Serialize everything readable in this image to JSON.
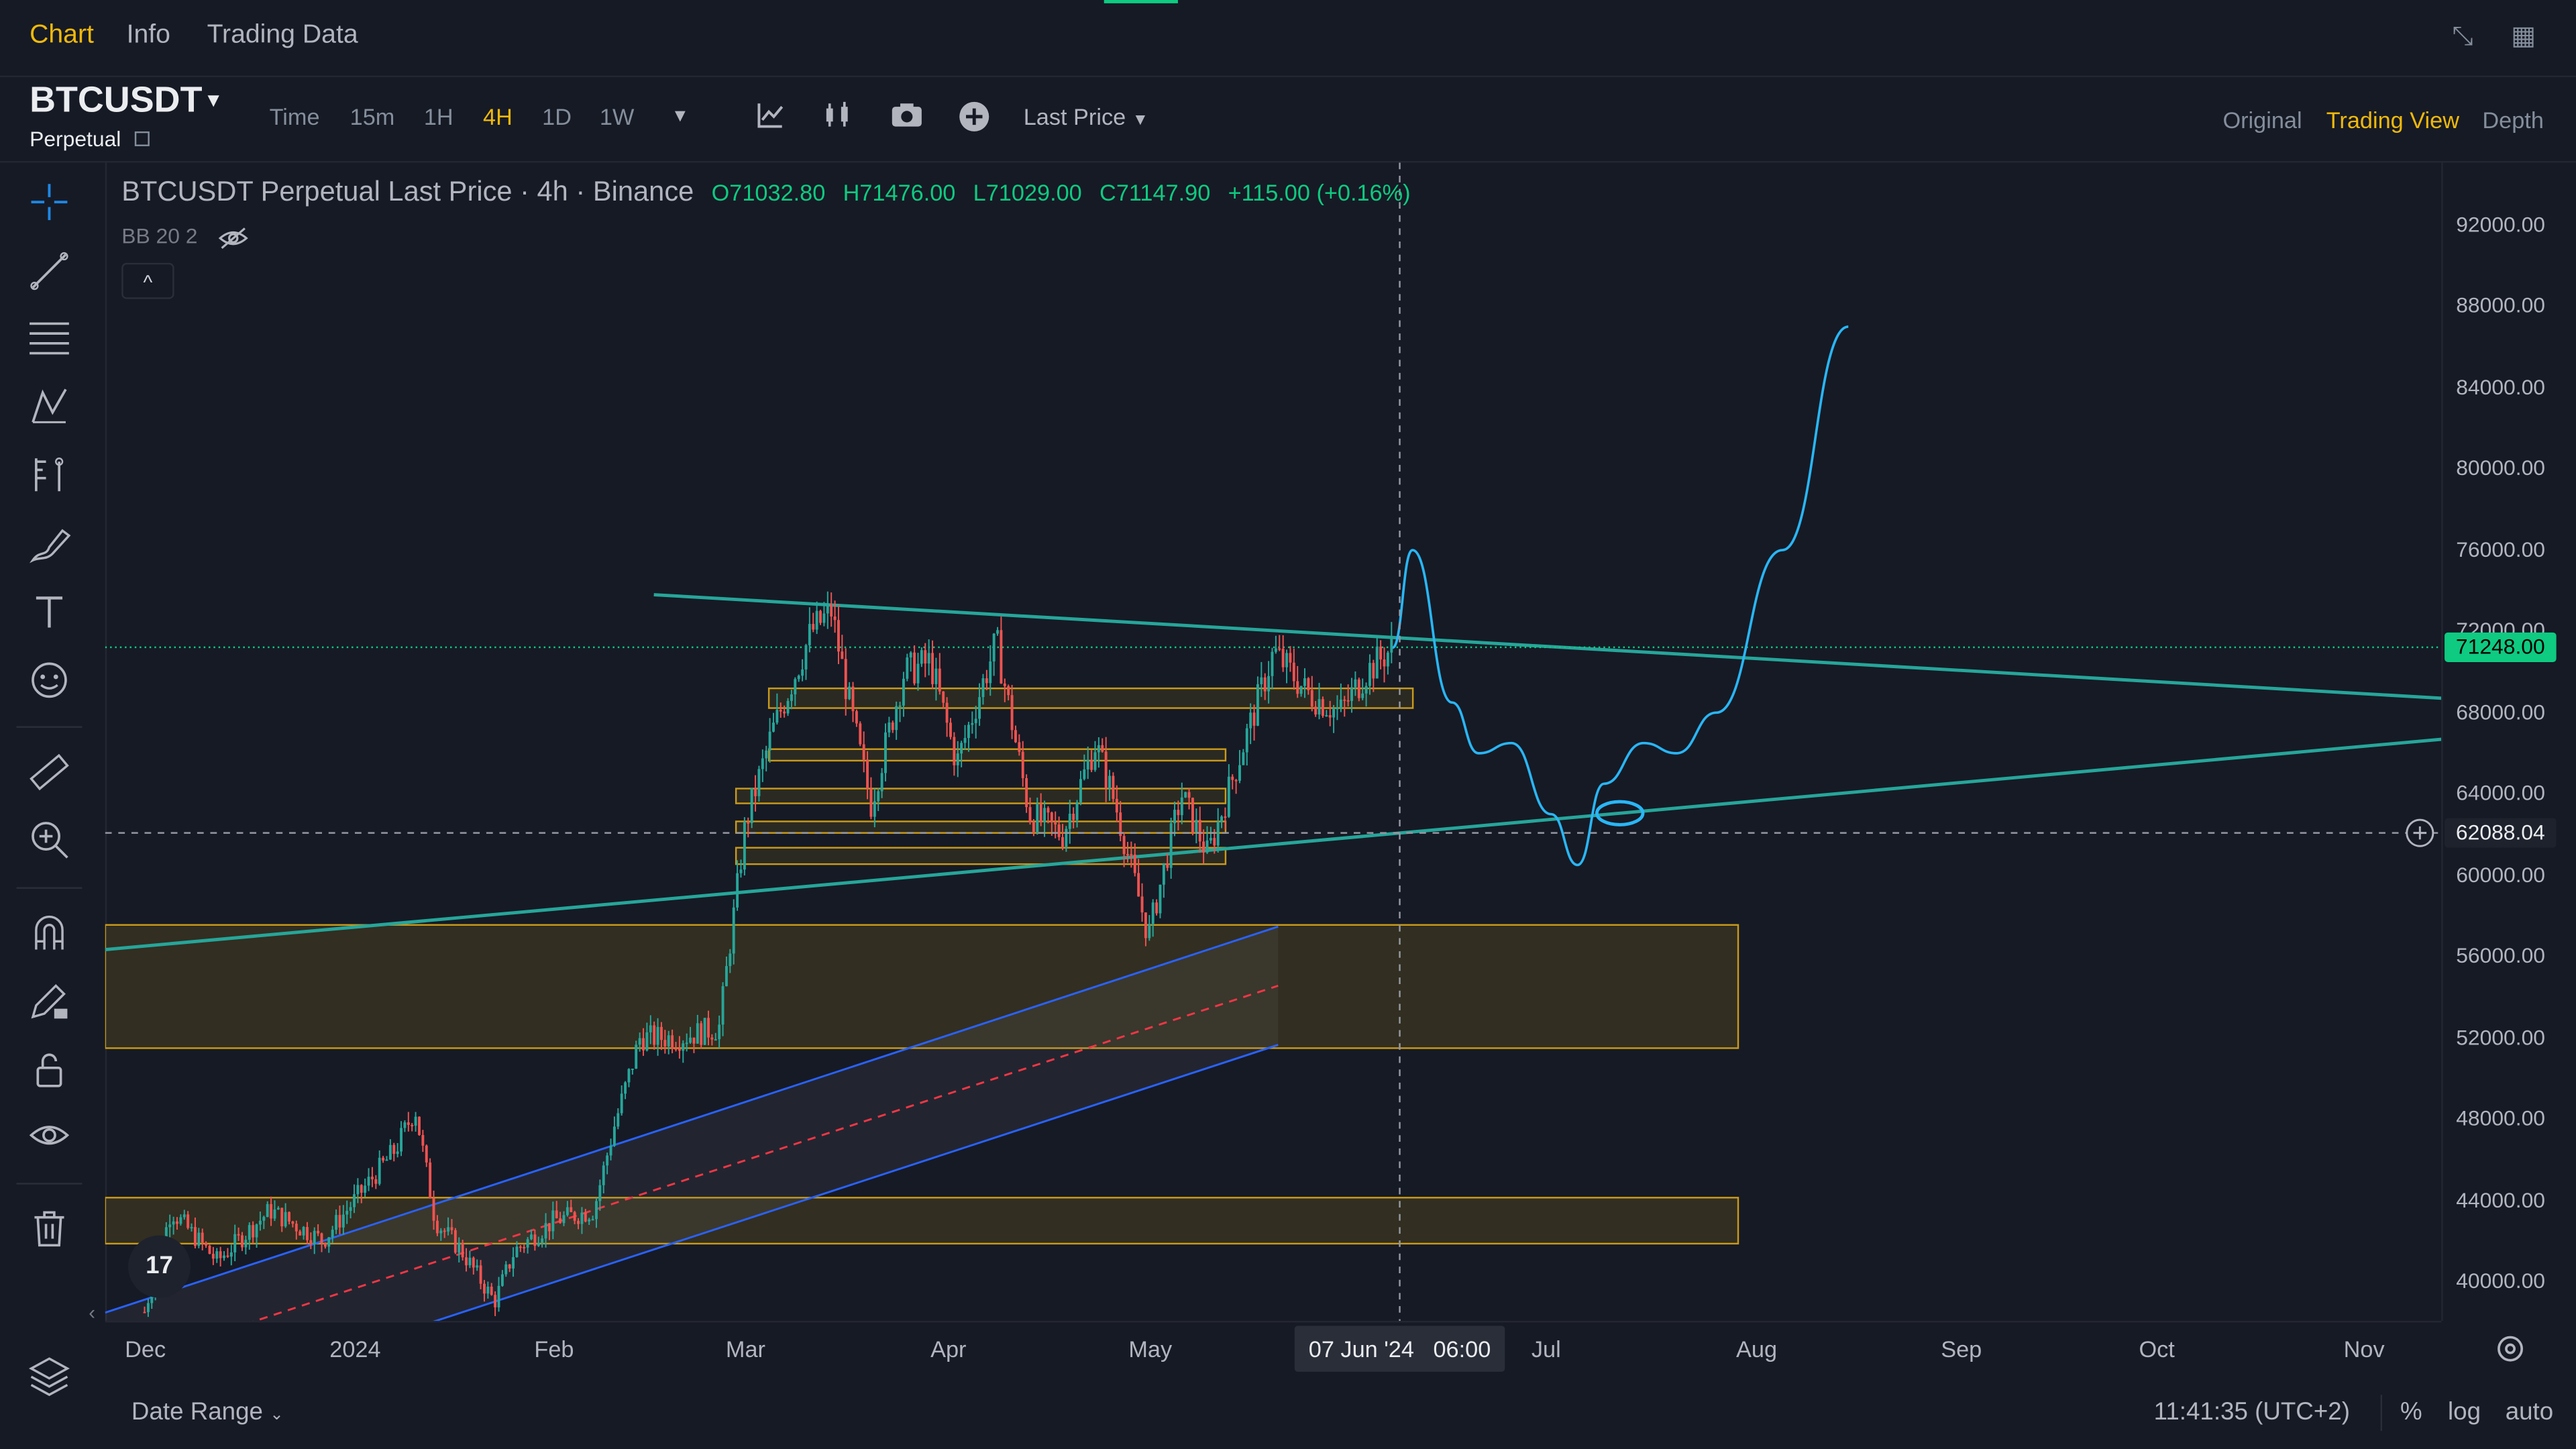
{
  "top_tabs": [
    {
      "label": "Chart",
      "active": true
    },
    {
      "label": "Info",
      "active": false
    },
    {
      "label": "Trading Data",
      "active": false
    }
  ],
  "top_icons": [
    "collapse-icon",
    "grid-icon"
  ],
  "symbol": {
    "name": "BTCUSDT",
    "type": "Perpetual"
  },
  "timeframes": [
    {
      "label": "Time",
      "active": false
    },
    {
      "label": "15m",
      "active": false
    },
    {
      "label": "1H",
      "active": false
    },
    {
      "label": "4H",
      "active": true
    },
    {
      "label": "1D",
      "active": false
    },
    {
      "label": "1W",
      "active": false
    }
  ],
  "toolbar_icons": [
    "chevron-down-icon",
    "indicators-icon",
    "candles-icon",
    "camera-icon",
    "plus-circle-icon"
  ],
  "price_type": "Last Price",
  "view_options": [
    {
      "label": "Original",
      "active": false
    },
    {
      "label": "Trading View",
      "active": true
    },
    {
      "label": "Depth",
      "active": false
    }
  ],
  "left_tools": [
    "crosshair-icon",
    "trendline-icon",
    "fib-icon",
    "pattern-icon",
    "forecast-icon",
    "brush-icon",
    "text-icon",
    "emoji-icon",
    "ruler-icon",
    "zoom-icon",
    "magnet-icon",
    "pencil-lock-icon",
    "lock-icon",
    "eye-icon",
    "trash-icon",
    "layers-icon"
  ],
  "legend": {
    "title": "BTCUSDT Perpetual Last Price · 4h · Binance",
    "o": "O71032.80",
    "h": "H71476.00",
    "l": "L71029.00",
    "c": "C71147.90",
    "change": "+115.00 (+0.16%)",
    "indicator": "BB 20 2",
    "collapse": "^"
  },
  "chart_data": {
    "type": "candlestick",
    "y_ticks": [
      "92000.00",
      "88000.00",
      "84000.00",
      "80000.00",
      "76000.00",
      "72000.00",
      "68000.00",
      "64000.00",
      "60000.00",
      "56000.00",
      "52000.00",
      "48000.00",
      "44000.00",
      "40000.00"
    ],
    "ylim": [
      38000,
      94000
    ],
    "x_ticks": [
      "Dec",
      "2024",
      "Feb",
      "Mar",
      "Apr",
      "May",
      "Jun",
      "Jul",
      "Aug",
      "Sep",
      "Oct",
      "Nov"
    ],
    "current_price": "71248.00",
    "crosshair_price": "62088.04",
    "crosshair_time": "07 Jun '24   06:00",
    "price_path": [
      [
        "2023-12-01",
        38500
      ],
      [
        "2023-12-05",
        43500
      ],
      [
        "2023-12-12",
        41000
      ],
      [
        "2023-12-20",
        43500
      ],
      [
        "2023-12-28",
        42000
      ],
      [
        "2024-01-03",
        44500
      ],
      [
        "2024-01-08",
        46500
      ],
      [
        "2024-01-11",
        48500
      ],
      [
        "2024-01-14",
        43000
      ],
      [
        "2024-01-18",
        41500
      ],
      [
        "2024-01-23",
        39000
      ],
      [
        "2024-01-26",
        41500
      ],
      [
        "2024-02-01",
        43000
      ],
      [
        "2024-02-07",
        43500
      ],
      [
        "2024-02-10",
        47500
      ],
      [
        "2024-02-14",
        52000
      ],
      [
        "2024-02-20",
        52000
      ],
      [
        "2024-02-26",
        52500
      ],
      [
        "2024-02-28",
        57500
      ],
      [
        "2024-03-01",
        62500
      ],
      [
        "2024-03-05",
        67000
      ],
      [
        "2024-03-11",
        72000
      ],
      [
        "2024-03-14",
        73000
      ],
      [
        "2024-03-17",
        68000
      ],
      [
        "2024-03-20",
        63500
      ],
      [
        "2024-03-25",
        70000
      ],
      [
        "2024-03-29",
        70500
      ],
      [
        "2024-04-02",
        65500
      ],
      [
        "2024-04-08",
        71500
      ],
      [
        "2024-04-13",
        63000
      ],
      [
        "2024-04-18",
        62000
      ],
      [
        "2024-04-23",
        66500
      ],
      [
        "2024-04-26",
        63500
      ],
      [
        "2024-05-01",
        57000
      ],
      [
        "2024-05-06",
        64000
      ],
      [
        "2024-05-10",
        61000
      ],
      [
        "2024-05-15",
        66000
      ],
      [
        "2024-05-20",
        71000
      ],
      [
        "2024-05-25",
        69000
      ],
      [
        "2024-05-30",
        68000
      ],
      [
        "2024-06-03",
        70000
      ],
      [
        "2024-06-07",
        71200
      ]
    ],
    "projection_path": [
      [
        "2024-06-07",
        71200
      ],
      [
        "2024-06-10",
        76000
      ],
      [
        "2024-06-16",
        68500
      ],
      [
        "2024-06-20",
        66000
      ],
      [
        "2024-06-25",
        66500
      ],
      [
        "2024-07-01",
        63000
      ],
      [
        "2024-07-05",
        60500
      ],
      [
        "2024-07-09",
        64500
      ],
      [
        "2024-07-15",
        66500
      ],
      [
        "2024-07-20",
        66000
      ],
      [
        "2024-07-26",
        68000
      ],
      [
        "2024-08-05",
        76000
      ],
      [
        "2024-08-15",
        87000
      ]
    ]
  },
  "time_axis_right_icon": "settings-icon",
  "date_range": "Date Range",
  "clock": "11:41:35 (UTC+2)",
  "scale_options": [
    "%",
    "log",
    "auto"
  ],
  "tv_logo": "17"
}
